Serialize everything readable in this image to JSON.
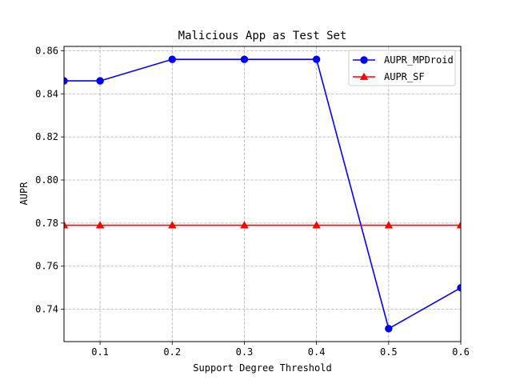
{
  "chart_data": {
    "type": "line",
    "title": "Malicious App as Test Set",
    "xlabel": "Support Degree Threshold",
    "ylabel": "AUPR",
    "xlim": [
      0.05,
      0.6
    ],
    "ylim": [
      0.725,
      0.862
    ],
    "xticks": [
      "0.1",
      "0.2",
      "0.3",
      "0.4",
      "0.5",
      "0.6"
    ],
    "xtick_values": [
      0.1,
      0.2,
      0.3,
      0.4,
      0.5,
      0.6
    ],
    "yticks": [
      "0.74",
      "0.76",
      "0.78",
      "0.80",
      "0.82",
      "0.84",
      "0.86"
    ],
    "ytick_values": [
      0.74,
      0.76,
      0.78,
      0.8,
      0.82,
      0.84,
      0.86
    ],
    "grid": true,
    "legend_position": "top-right",
    "series": [
      {
        "name": "AUPR_MPDroid",
        "color": "#0000ff",
        "marker": "circle",
        "x": [
          0.05,
          0.1,
          0.2,
          0.3,
          0.4,
          0.5,
          0.6
        ],
        "y": [
          0.846,
          0.846,
          0.856,
          0.856,
          0.856,
          0.731,
          0.75
        ]
      },
      {
        "name": "AUPR_SF",
        "color": "#ff0000",
        "marker": "triangle",
        "x": [
          0.05,
          0.1,
          0.2,
          0.3,
          0.4,
          0.5,
          0.6
        ],
        "y": [
          0.779,
          0.779,
          0.779,
          0.779,
          0.779,
          0.779,
          0.779
        ]
      }
    ]
  }
}
